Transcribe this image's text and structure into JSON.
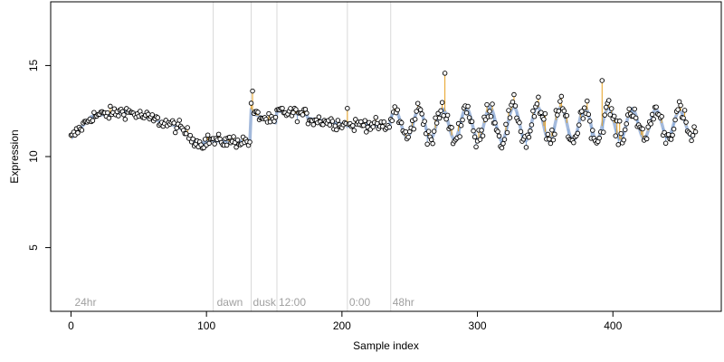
{
  "chart_data": {
    "type": "scatter",
    "title": "",
    "xlabel": "Sample index",
    "ylabel": "Expression",
    "xlim": [
      -15,
      480
    ],
    "ylim": [
      1.5,
      18.5
    ],
    "x_ticks": [
      0,
      100,
      200,
      300,
      400
    ],
    "y_ticks": [
      5,
      10,
      15
    ],
    "grid": false,
    "legend": "none",
    "colors": {
      "points_fill": "#ffffff",
      "points_stroke": "#000000",
      "fit_line": "#9ab3d8",
      "fit_line_alt": "#c8a070",
      "residual_up": "#e6a020",
      "residual_down": "#7fa6d8",
      "phase_divider": "#d8d8d8",
      "phase_label": "#a0a0a0"
    },
    "phases": [
      {
        "label": "24hr",
        "start": 0,
        "end": 105
      },
      {
        "label": "dawn",
        "start": 105,
        "end": 133
      },
      {
        "label": "dusk",
        "start": 133,
        "end": 152
      },
      {
        "label": "12:00",
        "start": 152,
        "end": 204
      },
      {
        "label": "0:00",
        "start": 204,
        "end": 236
      },
      {
        "label": "48hr",
        "start": 236,
        "end": 462
      }
    ],
    "dividers": [
      105,
      133,
      152,
      204,
      236
    ],
    "n_samples": 462
  }
}
